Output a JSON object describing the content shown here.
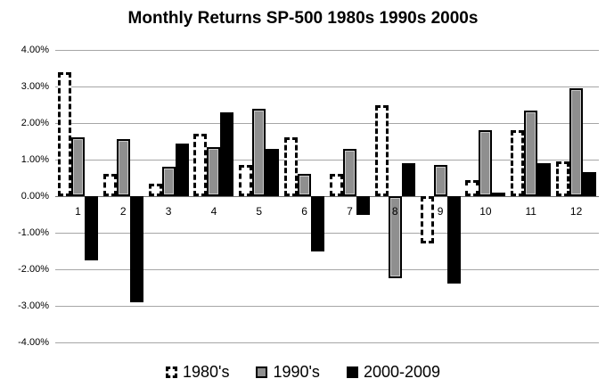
{
  "chart_data": {
    "type": "bar",
    "title": "Monthly Returns SP-500 1980s 1990s 2000s",
    "categories": [
      "1",
      "2",
      "3",
      "4",
      "5",
      "6",
      "7",
      "8",
      "9",
      "10",
      "11",
      "12"
    ],
    "series": [
      {
        "name": "1980's",
        "style": "dashed-outline",
        "values": [
          3.4,
          0.6,
          0.35,
          1.7,
          0.85,
          1.6,
          0.6,
          2.5,
          -1.3,
          0.45,
          1.8,
          0.95
        ]
      },
      {
        "name": "1990's",
        "style": "gray",
        "values": [
          1.6,
          1.55,
          0.8,
          1.35,
          2.4,
          0.6,
          1.3,
          -2.25,
          0.85,
          1.8,
          2.35,
          2.95
        ]
      },
      {
        "name": "2000-2009",
        "style": "black",
        "values": [
          -1.75,
          -2.9,
          1.45,
          2.3,
          1.3,
          -1.5,
          -0.5,
          0.9,
          -2.4,
          0.1,
          0.9,
          0.65
        ]
      }
    ],
    "ylim": [
      -4,
      4
    ],
    "ytick_step": 1,
    "ytick_labels": [
      "4.00%",
      "3.00%",
      "2.00%",
      "1.00%",
      "0.00%",
      "-1.00%",
      "-2.00%",
      "-3.00%",
      "-4.00%"
    ],
    "grid": true,
    "legend_position": "bottom",
    "colors": {
      "gray_fill": "#8f8f8f",
      "black_fill": "#000000",
      "outline": "#000000",
      "gridline": "#a6a6a6",
      "background": "#ffffff",
      "text": "#000000"
    }
  }
}
